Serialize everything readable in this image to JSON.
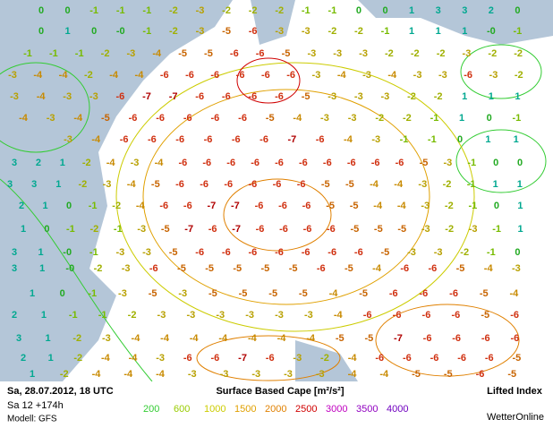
{
  "map": {
    "rows": [
      [
        "0",
        "0",
        "-1",
        "-1",
        "-1",
        "-2",
        "-3",
        "-2",
        "-2",
        "-2",
        "-1",
        "-1",
        "0",
        "0",
        "1",
        "3",
        "3",
        "2",
        "0"
      ],
      [
        "0",
        "1",
        "0",
        "-0",
        "-1",
        "-2",
        "-3",
        "-5",
        "-6",
        "-3",
        "-3",
        "-2",
        "-2",
        "-1",
        "1",
        "1",
        "1",
        "-0",
        "-1"
      ],
      [
        "-1",
        "-1",
        "-1",
        "-2",
        "-3",
        "-4",
        "-5",
        "-5",
        "-6",
        "-6",
        "-5",
        "-3",
        "-3",
        "-3",
        "-2",
        "-2",
        "-2",
        "-3",
        "-2",
        "-2"
      ],
      [
        "-3",
        "-4",
        "-4",
        "-2",
        "-4",
        "-4",
        "-6",
        "-6",
        "-6",
        "-6",
        "-6",
        "-6",
        "-3",
        "-4",
        "-3",
        "-4",
        "-3",
        "-3",
        "-6",
        "-3",
        "-2"
      ],
      [
        "-3",
        "-4",
        "-3",
        "-3",
        "-6",
        "-7",
        "-7",
        "-6",
        "-6",
        "-6",
        "-6",
        "-5",
        "-3",
        "-3",
        "-3",
        "-2",
        "-2",
        "1",
        "1",
        "1"
      ],
      [
        "-4",
        "-3",
        "-4",
        "-5",
        "-6",
        "-6",
        "-6",
        "-6",
        "-6",
        "-5",
        "-4",
        "-3",
        "-3",
        "-2",
        "-2",
        "-1",
        "1",
        "0",
        "-1"
      ],
      [
        "-3",
        "-4",
        "-6",
        "-6",
        "-6",
        "-6",
        "-6",
        "-6",
        "-7",
        "-6",
        "-4",
        "-3",
        "-1",
        "-1",
        "0",
        "1",
        "1"
      ],
      [
        "3",
        "2",
        "1",
        "-2",
        "-4",
        "-3",
        "-4",
        "-6",
        "-6",
        "-6",
        "-6",
        "-6",
        "-6",
        "-6",
        "-6",
        "-6",
        "-6",
        "-5",
        "-3",
        "-1",
        "0",
        "0"
      ],
      [
        "3",
        "3",
        "1",
        "-2",
        "-3",
        "-4",
        "-5",
        "-6",
        "-6",
        "-6",
        "-6",
        "-6",
        "-6",
        "-5",
        "-5",
        "-4",
        "-4",
        "-3",
        "-2",
        "-1",
        "1",
        "1"
      ],
      [
        "2",
        "1",
        "0",
        "-1",
        "-2",
        "-4",
        "-6",
        "-6",
        "-7",
        "-7",
        "-6",
        "-6",
        "-6",
        "-5",
        "-5",
        "-4",
        "-4",
        "-3",
        "-2",
        "-1",
        "0",
        "1"
      ],
      [
        "1",
        "0",
        "-1",
        "-2",
        "-1",
        "-3",
        "-5",
        "-7",
        "-6",
        "-7",
        "-6",
        "-6",
        "-6",
        "-6",
        "-5",
        "-5",
        "-5",
        "-3",
        "-2",
        "-3",
        "-1",
        "1"
      ],
      [
        "3",
        "1",
        "-0",
        "-1",
        "-3",
        "-3",
        "-5",
        "-6",
        "-6",
        "-6",
        "-6",
        "-6",
        "-6",
        "-6",
        "-5",
        "-3",
        "-3",
        "-2",
        "-1",
        "0"
      ],
      [
        "3",
        "1",
        "-0",
        "-2",
        "-3",
        "-6",
        "-5",
        "-5",
        "-5",
        "-5",
        "-5",
        "-6",
        "-5",
        "-4",
        "-6",
        "-6",
        "-5",
        "-4",
        "-3"
      ],
      [
        "1",
        "0",
        "-1",
        "-3",
        "-5",
        "-3",
        "-5",
        "-5",
        "-5",
        "-5",
        "-4",
        "-5",
        "-6",
        "-6",
        "-6",
        "-5",
        "-4"
      ],
      [
        "2",
        "1",
        "-1",
        "-1",
        "-2",
        "-3",
        "-3",
        "-3",
        "-3",
        "-3",
        "-3",
        "-4",
        "-6",
        "-6",
        "-6",
        "-6",
        "-5",
        "-6"
      ],
      [
        "3",
        "1",
        "-2",
        "-3",
        "-4",
        "-4",
        "-4",
        "-4",
        "-4",
        "-4",
        "-4",
        "-5",
        "-5",
        "-7",
        "-6",
        "-6",
        "-6",
        "-6"
      ],
      [
        "2",
        "1",
        "-2",
        "-4",
        "-4",
        "-3",
        "-6",
        "-6",
        "-7",
        "-6",
        "-3",
        "-2",
        "-4",
        "-6",
        "-6",
        "-6",
        "-6",
        "-6",
        "-5"
      ],
      [
        "1",
        "-2",
        "-4",
        "-4",
        "-4",
        "-3",
        "-3",
        "-3",
        "-3",
        "-3",
        "-4",
        "-4",
        "-5",
        "-5",
        "-6",
        "-5"
      ]
    ]
  },
  "footer": {
    "date": "Sa, 28.07.2012, 18 UTC",
    "run": "Sa 12 +174h",
    "model": "Modell: GFS",
    "title": "Surface Based Cape [m²/s²]",
    "legend": [
      {
        "value": 200,
        "color": "#33cc33"
      },
      {
        "value": 600,
        "color": "#99cc00"
      },
      {
        "value": 1000,
        "color": "#cccc00"
      },
      {
        "value": 1500,
        "color": "#e0a000"
      },
      {
        "value": 2000,
        "color": "#e08000"
      },
      {
        "value": 2500,
        "color": "#d00000"
      },
      {
        "value": 3000,
        "color": "#c000c0"
      },
      {
        "value": 3500,
        "color": "#9000c0"
      },
      {
        "value": 4000,
        "color": "#7000c0"
      }
    ],
    "index_title": "Lifted Index",
    "brand": "WetterOnline"
  }
}
